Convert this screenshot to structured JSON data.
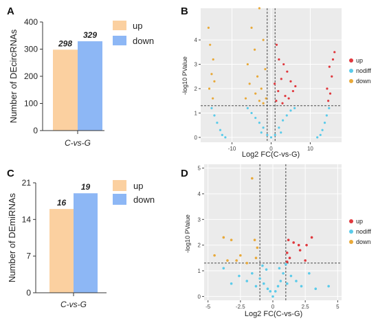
{
  "panels": {
    "a": {
      "letter": "A"
    },
    "b": {
      "letter": "B"
    },
    "c": {
      "letter": "C"
    },
    "d": {
      "letter": "D"
    }
  },
  "colors": {
    "up_bar": "#FBD0A0",
    "down_bar": "#8DB7F5",
    "up_point": "#E0393E",
    "nodiff_point": "#5BCBEA",
    "down_point": "#E8A93A",
    "grid_bg": "#EBEBEB"
  },
  "chart_data": [
    {
      "panel": "A",
      "type": "bar",
      "categories": [
        "C-vs-G"
      ],
      "series": [
        {
          "name": "up",
          "values": [
            298
          ]
        },
        {
          "name": "down",
          "values": [
            329
          ]
        }
      ],
      "data_labels": [
        "298",
        "329"
      ],
      "title": "",
      "xlabel": "C-vs-G",
      "ylabel": "Number of DEcircRNAs",
      "ylim": [
        0,
        400
      ],
      "yticks": [
        "0",
        "100",
        "200",
        "300",
        "400"
      ],
      "legend": [
        "up",
        "down"
      ],
      "legend_position": "top-right",
      "grid": false
    },
    {
      "panel": "B",
      "type": "scatter",
      "title": "",
      "xlabel": "Log2 FC(C-vs-G)",
      "ylabel": "-log10 PValue",
      "xlim": [
        -18,
        18
      ],
      "ylim": [
        -0.2,
        5.3
      ],
      "xticks": [
        "-10",
        "0",
        "10"
      ],
      "yticks": [
        "0",
        "1",
        "2",
        "3",
        "4"
      ],
      "legend": [
        "up",
        "nodiff",
        "down"
      ],
      "legend_position": "right",
      "grid": true,
      "threshold_lines": {
        "x": [
          -1,
          1
        ],
        "y": [
          1.3
        ]
      },
      "series": [
        {
          "name": "up",
          "points": [
            [
              16.2,
              3.5
            ],
            [
              15.8,
              3.2
            ],
            [
              14.9,
              2.9
            ],
            [
              15.5,
              2.5
            ],
            [
              14.3,
              2.0
            ],
            [
              15.1,
              1.8
            ],
            [
              14.6,
              1.5
            ],
            [
              1.4,
              3.8
            ],
            [
              2.0,
              3.2
            ],
            [
              3.2,
              3.0
            ],
            [
              4.1,
              2.7
            ],
            [
              2.6,
              2.4
            ],
            [
              5.0,
              2.3
            ],
            [
              1.8,
              1.9
            ],
            [
              3.6,
              1.7
            ],
            [
              4.5,
              1.6
            ],
            [
              1.3,
              1.5
            ],
            [
              2.9,
              1.4
            ],
            [
              6.2,
              2.1
            ],
            [
              5.6,
              1.9
            ],
            [
              0.9,
              2.2
            ]
          ]
        },
        {
          "name": "nodiff",
          "points": [
            [
              -15.2,
              1.2
            ],
            [
              -14.5,
              0.9
            ],
            [
              -13.8,
              0.6
            ],
            [
              -13.0,
              0.3
            ],
            [
              -12.5,
              0.1
            ],
            [
              -11.7,
              0.0
            ],
            [
              14.8,
              1.2
            ],
            [
              14.2,
              0.9
            ],
            [
              13.7,
              0.6
            ],
            [
              13.1,
              0.3
            ],
            [
              12.6,
              0.1
            ],
            [
              11.8,
              0.0
            ],
            [
              -6.0,
              1.2
            ],
            [
              -5.0,
              1.0
            ],
            [
              -4.0,
              0.8
            ],
            [
              -3.0,
              0.6
            ],
            [
              -2.0,
              0.4
            ],
            [
              -1.0,
              0.1
            ],
            [
              0.0,
              0.0
            ],
            [
              1.0,
              0.1
            ],
            [
              2.0,
              0.4
            ],
            [
              3.0,
              0.7
            ],
            [
              4.0,
              0.9
            ],
            [
              5.0,
              1.1
            ],
            [
              6.0,
              1.2
            ],
            [
              -2.5,
              0.2
            ],
            [
              2.5,
              0.2
            ]
          ]
        },
        {
          "name": "down",
          "points": [
            [
              -16.0,
              4.5
            ],
            [
              -15.6,
              3.8
            ],
            [
              -14.8,
              3.2
            ],
            [
              -15.2,
              2.6
            ],
            [
              -14.5,
              2.3
            ],
            [
              -15.8,
              2.0
            ],
            [
              -14.9,
              1.6
            ],
            [
              -3.0,
              5.3
            ],
            [
              -5.0,
              4.5
            ],
            [
              -2.0,
              4.0
            ],
            [
              -4.2,
              3.6
            ],
            [
              -6.0,
              3.0
            ],
            [
              -1.5,
              2.8
            ],
            [
              -3.5,
              2.5
            ],
            [
              -5.5,
              2.2
            ],
            [
              -2.5,
              2.0
            ],
            [
              -4.0,
              1.8
            ],
            [
              -1.3,
              1.6
            ],
            [
              -3.0,
              1.5
            ],
            [
              -6.5,
              1.6
            ],
            [
              -2.0,
              1.4
            ]
          ]
        }
      ]
    },
    {
      "panel": "C",
      "type": "bar",
      "categories": [
        "C-vs-G"
      ],
      "series": [
        {
          "name": "up",
          "values": [
            16
          ]
        },
        {
          "name": "down",
          "values": [
            19
          ]
        }
      ],
      "data_labels": [
        "16",
        "19"
      ],
      "title": "",
      "xlabel": "C-vs-G",
      "ylabel": "Number of DEmiRNAs",
      "ylim": [
        0,
        21
      ],
      "yticks": [
        "0",
        "7",
        "14",
        "21"
      ],
      "legend": [
        "up",
        "down"
      ],
      "legend_position": "top-right",
      "grid": false
    },
    {
      "panel": "D",
      "type": "scatter",
      "title": "",
      "xlabel": "Log2 FC(C-vs-G)",
      "ylabel": "-log10 PValue",
      "xlim": [
        -5.3,
        5.3
      ],
      "ylim": [
        -0.15,
        5.15
      ],
      "xticks": [
        "-5",
        "-2.5",
        "0",
        "2.5",
        "5"
      ],
      "yticks": [
        "0",
        "1",
        "2",
        "3",
        "4",
        "5"
      ],
      "legend": [
        "up",
        "nodiff",
        "down"
      ],
      "legend_position": "right",
      "grid": true,
      "threshold_lines": {
        "x": [
          -1,
          1
        ],
        "y": [
          1.3
        ]
      },
      "series": [
        {
          "name": "up",
          "points": [
            [
              1.2,
              2.2
            ],
            [
              1.1,
              1.7
            ],
            [
              1.3,
              1.5
            ],
            [
              1.1,
              1.35
            ],
            [
              1.6,
              2.1
            ],
            [
              2.0,
              2.0
            ],
            [
              2.1,
              1.8
            ],
            [
              2.6,
              2.0
            ],
            [
              3.0,
              2.3
            ],
            [
              2.5,
              1.4
            ]
          ]
        },
        {
          "name": "nodiff",
          "points": [
            [
              -3.8,
              1.1
            ],
            [
              -3.2,
              0.5
            ],
            [
              -2.6,
              0.8
            ],
            [
              -2.0,
              0.6
            ],
            [
              -1.6,
              0.9
            ],
            [
              -1.3,
              0.4
            ],
            [
              -1.0,
              0.7
            ],
            [
              -0.7,
              0.5
            ],
            [
              -0.4,
              0.3
            ],
            [
              -0.2,
              0.2
            ],
            [
              0.0,
              0.0
            ],
            [
              0.2,
              0.2
            ],
            [
              0.4,
              0.4
            ],
            [
              0.6,
              0.6
            ],
            [
              0.8,
              0.9
            ],
            [
              1.1,
              0.5
            ],
            [
              1.4,
              0.8
            ],
            [
              1.8,
              0.6
            ],
            [
              2.2,
              0.4
            ],
            [
              2.8,
              0.9
            ],
            [
              3.3,
              0.3
            ],
            [
              4.3,
              0.4
            ],
            [
              1.0,
              1.25
            ],
            [
              0.5,
              1.1
            ],
            [
              -0.5,
              1.05
            ],
            [
              -0.8,
              1.2
            ]
          ]
        },
        {
          "name": "down",
          "points": [
            [
              -4.5,
              1.6
            ],
            [
              -3.8,
              2.3
            ],
            [
              -3.2,
              2.2
            ],
            [
              -2.5,
              1.6
            ],
            [
              -1.6,
              4.6
            ],
            [
              -1.4,
              2.2
            ],
            [
              -1.2,
              1.9
            ],
            [
              -2.0,
              1.3
            ],
            [
              -1.3,
              1.5
            ],
            [
              -2.8,
              1.4
            ],
            [
              -3.5,
              1.4
            ]
          ]
        }
      ]
    }
  ]
}
